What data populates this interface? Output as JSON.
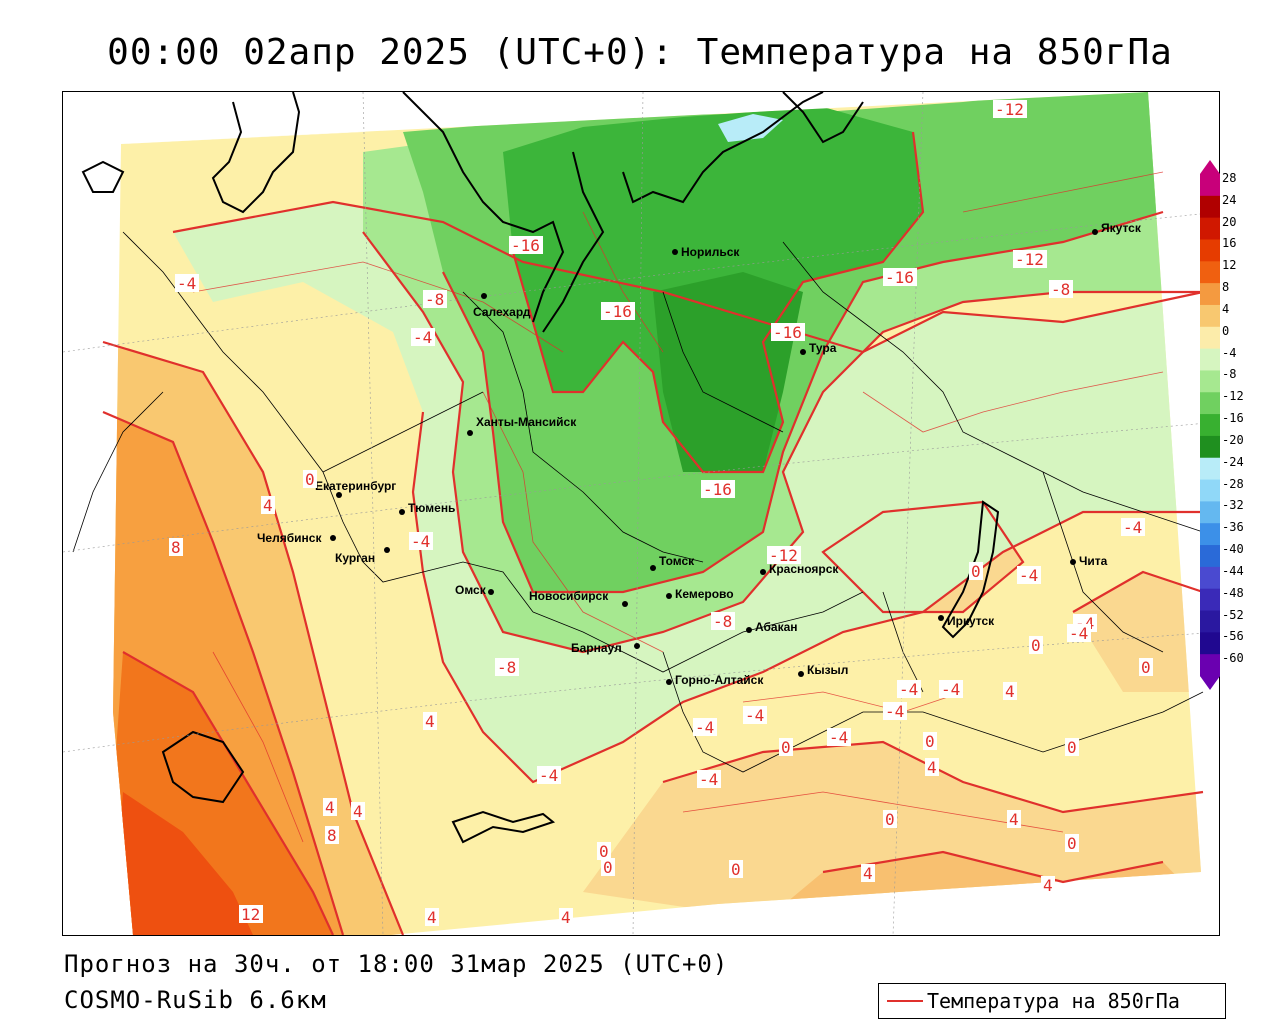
{
  "title": "00:00 02апр 2025 (UTC+0): Температура на 850гПа",
  "footer": {
    "forecast": "Прогноз на 30ч. от 18:00 31мар 2025 (UTC+0)",
    "model": "COSMO-RuSib 6.6км"
  },
  "legend": {
    "label": "Температура на 850гПа",
    "line_color": "#e0302c"
  },
  "colorbar": {
    "labels": [
      "28",
      "24",
      "20",
      "16",
      "12",
      "8",
      "4",
      "0",
      "-4",
      "-8",
      "-12",
      "-16",
      "-20",
      "-24",
      "-28",
      "-32",
      "-36",
      "-40",
      "-44",
      "-48",
      "-52",
      "-56",
      "-60"
    ],
    "colors": [
      "#c8007a",
      "#b00000",
      "#d01800",
      "#e63c00",
      "#f06010",
      "#f49a40",
      "#f8c870",
      "#fcecaa",
      "#d6f5c0",
      "#a6e890",
      "#70d060",
      "#38b030",
      "#1f8f1f",
      "#b8ecf8",
      "#90d8f8",
      "#64b8f0",
      "#3c90e8",
      "#2a6ad8",
      "#4a4ad0",
      "#3a2ab8",
      "#2a18a0",
      "#200890",
      "#6a00b0"
    ]
  },
  "cities": [
    {
      "name": "Норильск"
    },
    {
      "name": "Салехард"
    },
    {
      "name": "Тура"
    },
    {
      "name": "Якутск"
    },
    {
      "name": "Ханты-Мансийск"
    },
    {
      "name": "Екатеринбург"
    },
    {
      "name": "Тюмень"
    },
    {
      "name": "Челябинск"
    },
    {
      "name": "Курган"
    },
    {
      "name": "Омск"
    },
    {
      "name": "Новосибирск"
    },
    {
      "name": "Томск"
    },
    {
      "name": "Кемерово"
    },
    {
      "name": "Красноярск"
    },
    {
      "name": "Барнаул"
    },
    {
      "name": "Абакан"
    },
    {
      "name": "Иркутск"
    },
    {
      "name": "Чита"
    },
    {
      "name": "Горно-Алтайск"
    },
    {
      "name": "Кызыл"
    }
  ],
  "isotherm_labels": [
    "-12",
    "-16",
    "-12",
    "-8",
    "-16",
    "-16",
    "-16",
    "-16",
    "-4",
    "-8",
    "-4",
    "0",
    "4",
    "-4",
    "8",
    "4",
    "-4",
    "-12",
    "-8",
    "-8",
    "-4",
    "-4",
    "-4",
    "-4",
    "-4",
    "0",
    "-4",
    "0",
    "-4",
    "4",
    "0",
    "4",
    "0",
    "0",
    "0",
    "4",
    "0",
    "4",
    "4",
    "12",
    "4",
    "4",
    "0",
    "8",
    "4",
    "-4",
    "0",
    "0",
    "-4",
    "-4",
    "-4",
    "0",
    "0",
    "4"
  ]
}
